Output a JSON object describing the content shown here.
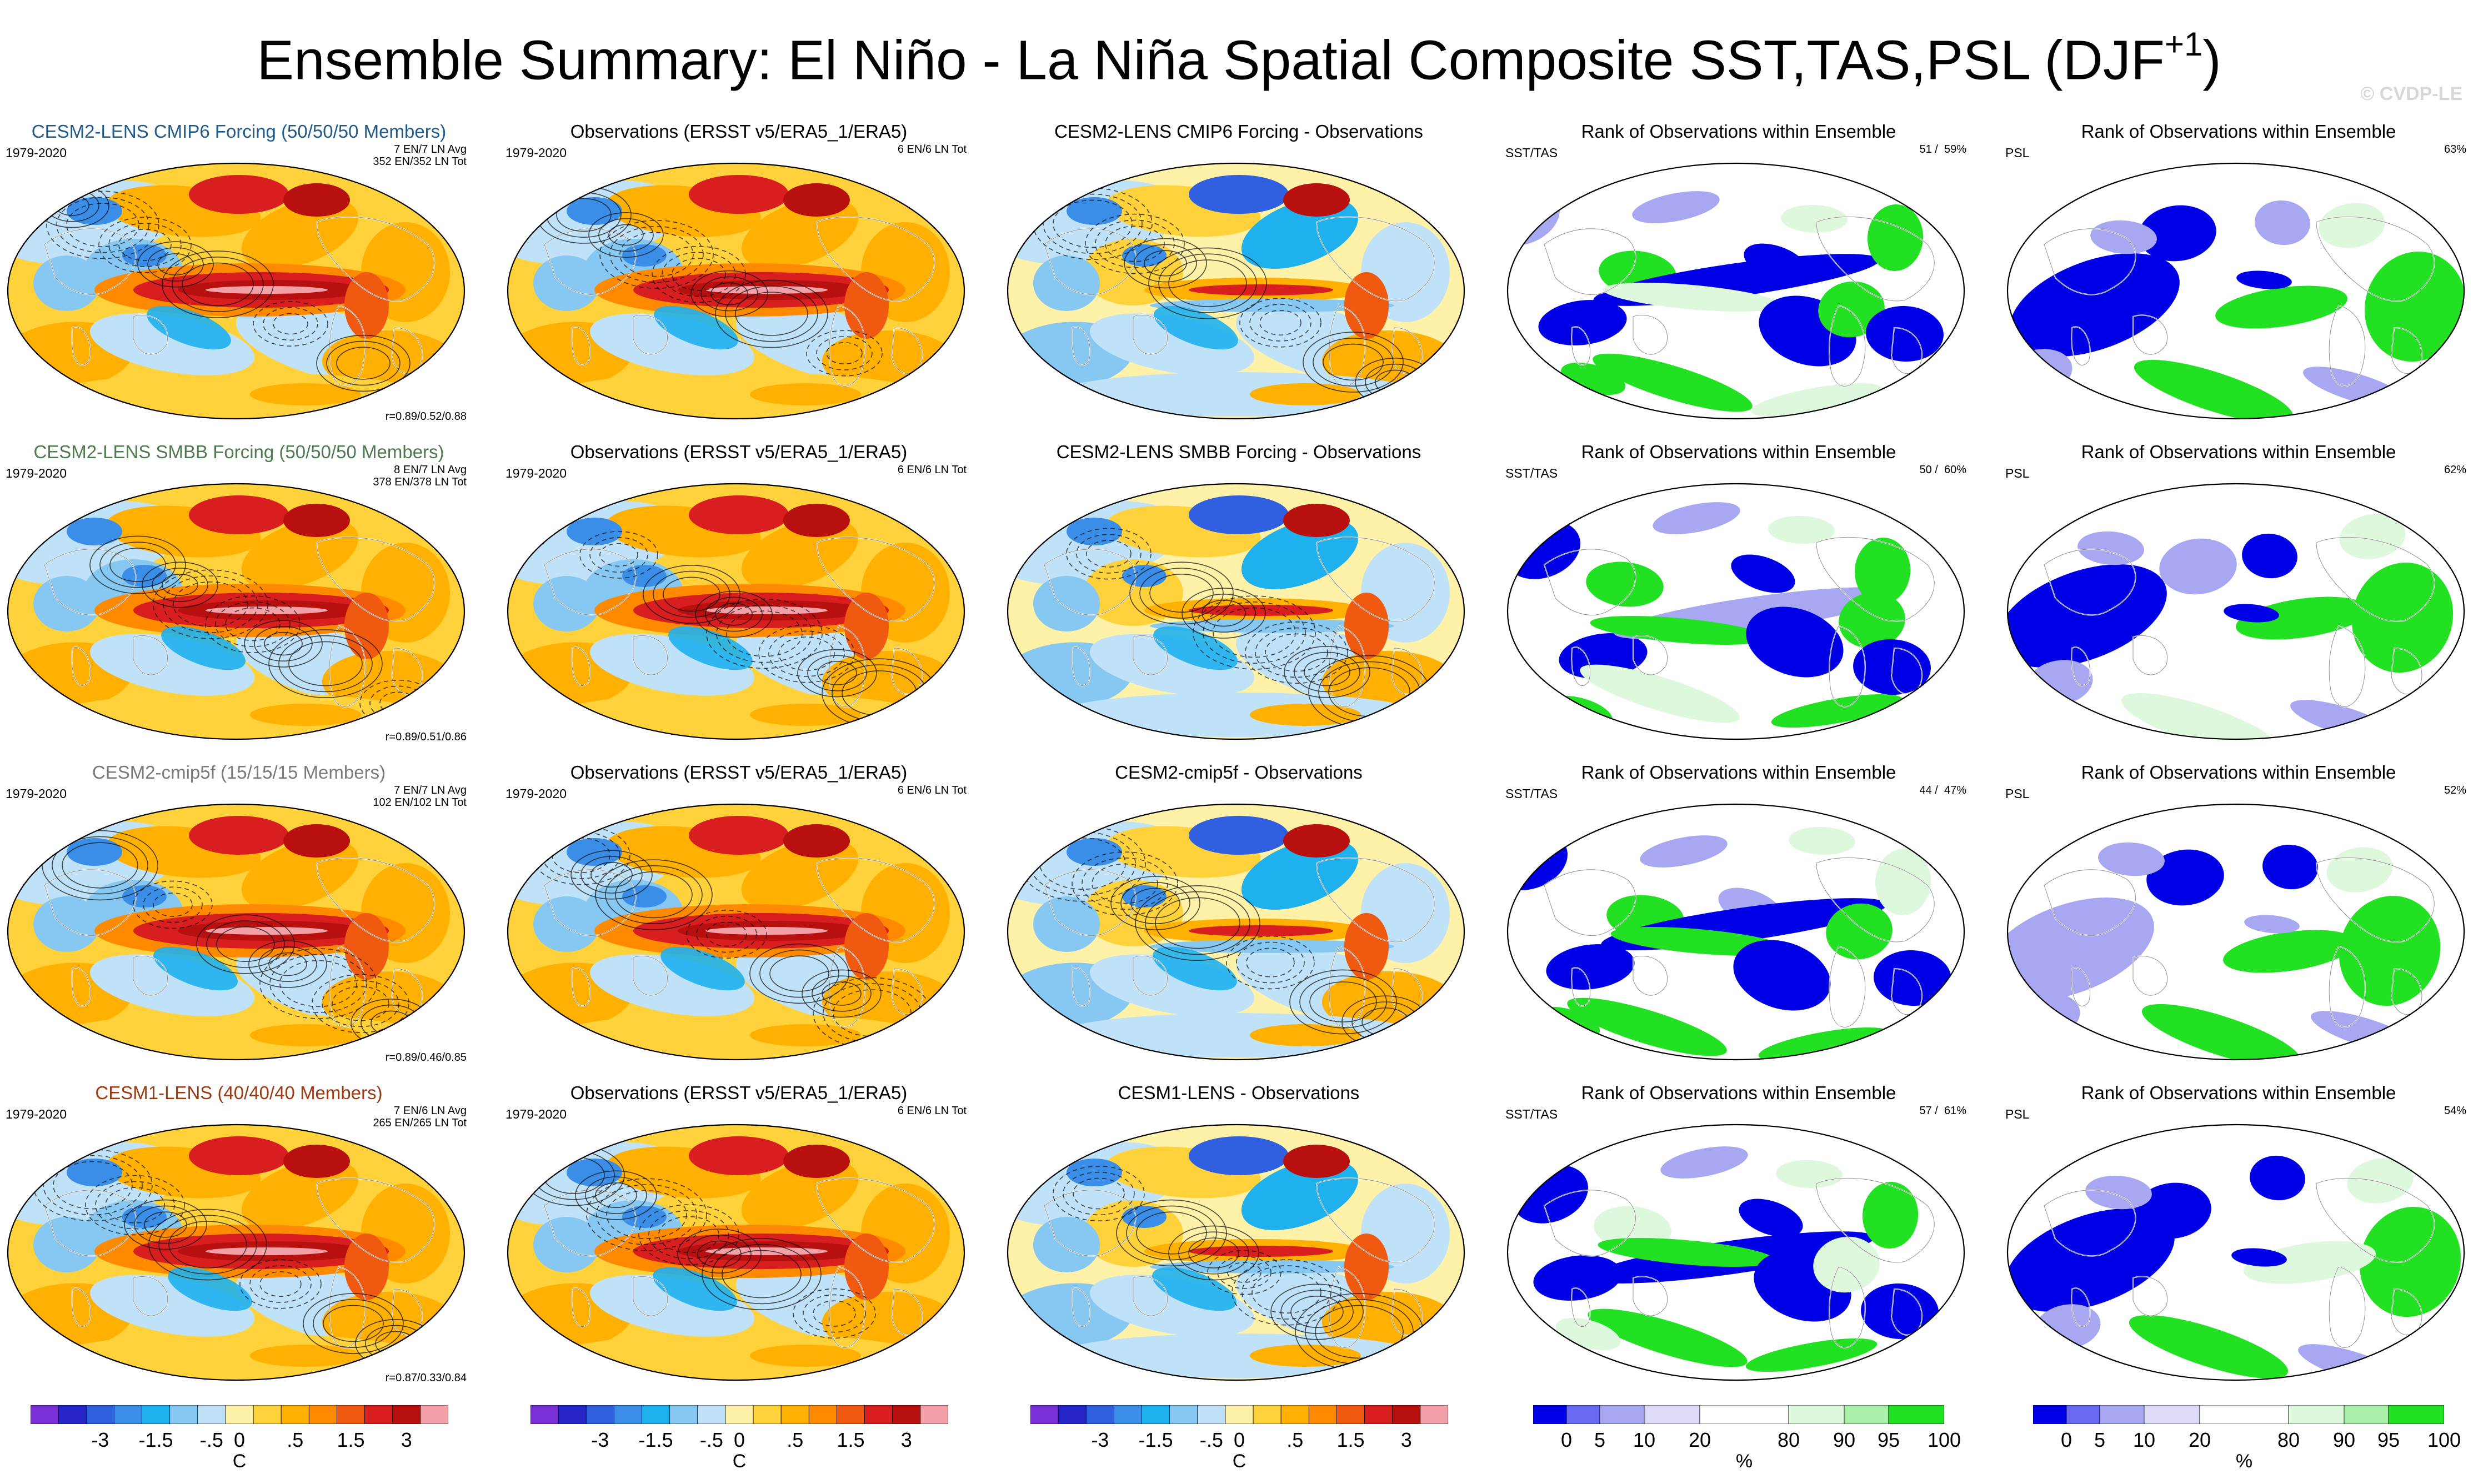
{
  "title": "Ensemble Summary: El Niño - La Niña Spatial Composite SST,TAS,PSL (DJF",
  "title_superscript": "+1",
  "title_close": ")",
  "watermark": "© CVDP-LE",
  "rows": [
    {
      "model_title": "CESM2-LENS CMIP6 Forcing (50/50/50 Members)",
      "model_color": "#1f5a8c",
      "model_period": "1979-2020",
      "model_counts": "7 EN/7 LN Avg\n352 EN/352 LN Tot",
      "model_corr": "r=0.89/0.52/0.88",
      "obs_title": "Observations (ERSST v5/ERA5_1/ERA5)",
      "obs_period": "1979-2020",
      "obs_counts": "6 EN/6 LN Tot",
      "diff_title": "CESM2-LENS CMIP6 Forcing - Observations",
      "rank1_title": "Rank of Observations within Ensemble",
      "rank1_label": "SST/TAS",
      "rank1_value": "51 /  59%",
      "rank2_title": "Rank of Observations within Ensemble",
      "rank2_label": "PSL",
      "rank2_value": "63%"
    },
    {
      "model_title": "CESM2-LENS SMBB Forcing (50/50/50 Members)",
      "model_color": "#4f7a4f",
      "model_period": "1979-2020",
      "model_counts": "8 EN/7 LN Avg\n378 EN/378 LN Tot",
      "model_corr": "r=0.89/0.51/0.86",
      "obs_title": "Observations (ERSST v5/ERA5_1/ERA5)",
      "obs_period": "1979-2020",
      "obs_counts": "6 EN/6 LN Tot",
      "diff_title": "CESM2-LENS SMBB Forcing - Observations",
      "rank1_title": "Rank of Observations within Ensemble",
      "rank1_label": "SST/TAS",
      "rank1_value": "50 /  60%",
      "rank2_title": "Rank of Observations within Ensemble",
      "rank2_label": "PSL",
      "rank2_value": "62%"
    },
    {
      "model_title": "CESM2-cmip5f (15/15/15 Members)",
      "model_color": "#7a7a7a",
      "model_period": "1979-2020",
      "model_counts": "7 EN/7 LN Avg\n102 EN/102 LN Tot",
      "model_corr": "r=0.89/0.46/0.85",
      "obs_title": "Observations (ERSST v5/ERA5_1/ERA5)",
      "obs_period": "1979-2020",
      "obs_counts": "6 EN/6 LN Tot",
      "diff_title": "CESM2-cmip5f - Observations",
      "rank1_title": "Rank of Observations within Ensemble",
      "rank1_label": "SST/TAS",
      "rank1_value": "44 /  47%",
      "rank2_title": "Rank of Observations within Ensemble",
      "rank2_label": "PSL",
      "rank2_value": "52%"
    },
    {
      "model_title": "CESM1-LENS (40/40/40 Members)",
      "model_color": "#9a3a12",
      "model_period": "1979-2020",
      "model_counts": "7 EN/6 LN Avg\n265 EN/265 LN Tot",
      "model_corr": "r=0.87/0.33/0.84",
      "obs_title": "Observations (ERSST v5/ERA5_1/ERA5)",
      "obs_period": "1979-2020",
      "obs_counts": "6 EN/6 LN Tot",
      "diff_title": "CESM1-LENS - Observations",
      "rank1_title": "Rank of Observations within Ensemble",
      "rank1_label": "SST/TAS",
      "rank1_value": "57 /  61%",
      "rank2_title": "Rank of Observations within Ensemble",
      "rank2_label": "PSL",
      "rank2_value": "54%"
    }
  ],
  "colorbars": {
    "temperature": {
      "ticks": [
        "-3",
        "-1.5",
        "-.5",
        "0",
        ".5",
        "1.5",
        "3"
      ],
      "unit": "C",
      "colors": [
        "#7b2fd6",
        "#2525c8",
        "#3060e0",
        "#3a8ee8",
        "#1fb0ee",
        "#86c8f2",
        "#bfe2f8",
        "#fff2a8",
        "#ffd13a",
        "#ffb000",
        "#ff8a00",
        "#f05a10",
        "#d81e1e",
        "#b80f0f",
        "#f4a0a8"
      ]
    },
    "rank": {
      "ticks": [
        "0",
        "5",
        "10",
        "20",
        "80",
        "90",
        "95",
        "100"
      ],
      "unit": "%",
      "colors": [
        "#0000e6",
        "#6868f0",
        "#a8a8f2",
        "#dcdcf8",
        "#ffffff",
        "#ddf8dd",
        "#a8f0a8",
        "#22e022"
      ]
    }
  },
  "chart_data": [
    {
      "type": "heatmap",
      "title": "Ensemble Summary: El Niño - La Niña Spatial Composite SST,TAS,PSL (DJF+1)",
      "layout": "4 rows x 5 columns of global map panels",
      "columns": [
        "model ensemble-mean composite",
        "Observations (ERSST v5/ERA5_1/ERA5)",
        "model - observations",
        "Rank of Observations within Ensemble (SST/TAS)",
        "Rank of Observations within Ensemble (PSL)"
      ],
      "series": [
        {
          "name": "CESM2-LENS CMIP6 Forcing",
          "pattern_correlations": [
            0.89,
            0.52,
            0.88
          ],
          "rank_sst_tas_pct": [
            51,
            59
          ],
          "rank_psl_pct": 63
        },
        {
          "name": "CESM2-LENS SMBB Forcing",
          "pattern_correlations": [
            0.89,
            0.51,
            0.86
          ],
          "rank_sst_tas_pct": [
            50,
            60
          ],
          "rank_psl_pct": 62
        },
        {
          "name": "CESM2-cmip5f",
          "pattern_correlations": [
            0.89,
            0.46,
            0.85
          ],
          "rank_sst_tas_pct": [
            44,
            47
          ],
          "rank_psl_pct": 52
        },
        {
          "name": "CESM1-LENS",
          "pattern_correlations": [
            0.87,
            0.33,
            0.84
          ],
          "rank_sst_tas_pct": [
            57,
            61
          ],
          "rank_psl_pct": 54
        }
      ],
      "temperature_colorbar_ticks": [
        -3,
        -1.5,
        -0.5,
        0,
        0.5,
        1.5,
        3
      ],
      "temperature_unit": "C",
      "rank_colorbar_ticks": [
        0,
        5,
        10,
        20,
        80,
        90,
        95,
        100
      ],
      "rank_unit": "%"
    }
  ]
}
